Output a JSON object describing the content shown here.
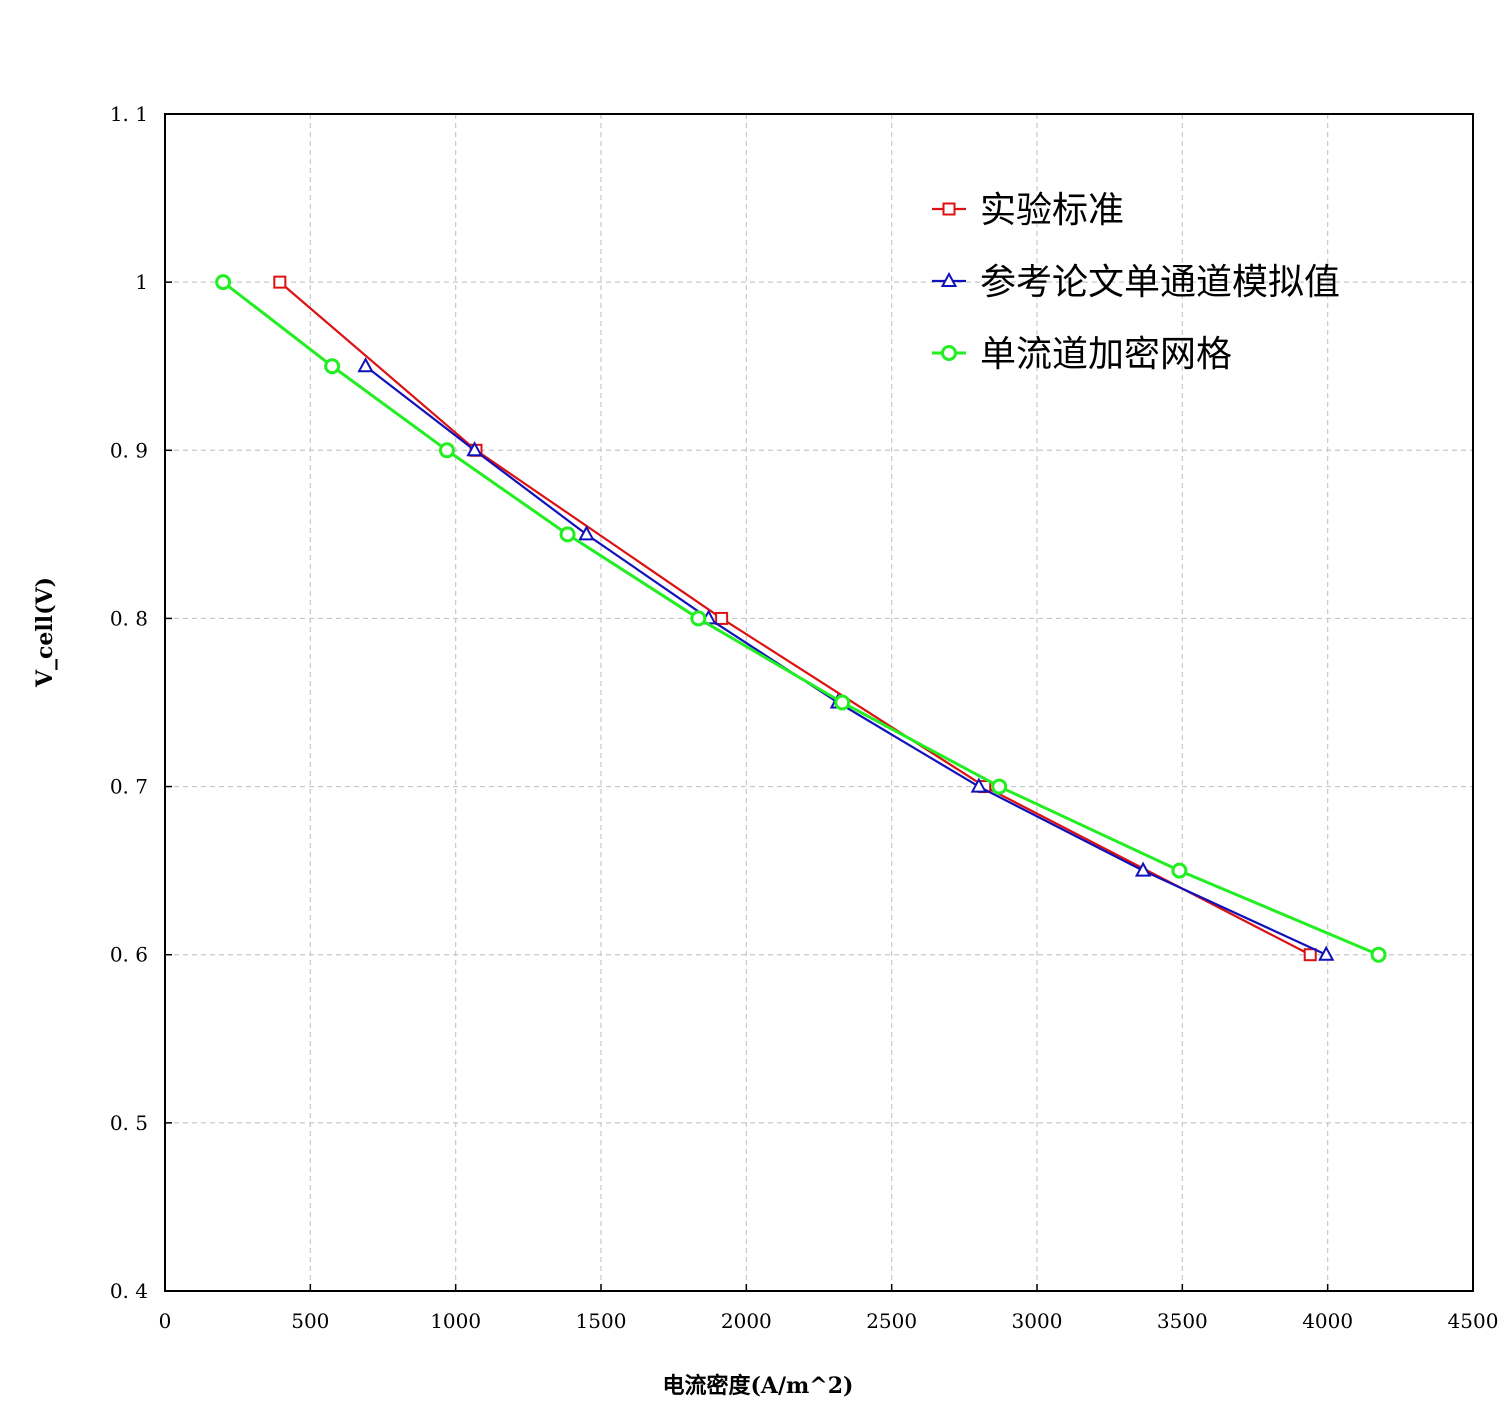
{
  "chart_data": {
    "type": "line",
    "title": "",
    "xlabel": "电流密度(A/m^2)",
    "ylabel": "V_cell(V)",
    "xlim": [
      0,
      4500
    ],
    "ylim": [
      0.4,
      1.1
    ],
    "xticks": [
      0,
      500,
      1000,
      1500,
      2000,
      2500,
      3000,
      3500,
      4000,
      4500
    ],
    "yticks": [
      0.4,
      0.5,
      0.6,
      0.7,
      0.8,
      0.9,
      1.0,
      1.1
    ],
    "xtick_labels": [
      "0",
      "500",
      "1000",
      "1500",
      "2000",
      "2500",
      "3000",
      "3500",
      "4000",
      "4500"
    ],
    "ytick_labels": [
      "0. 4",
      "0. 5",
      "0. 6",
      "0. 7",
      "0. 8",
      "0. 9",
      "1",
      "1. 1"
    ],
    "grid": true,
    "legend_position": "top-right",
    "series": [
      {
        "name": "实验标准",
        "color": "#dd1111",
        "marker": "square",
        "x": [
          395,
          1070,
          1915,
          2820,
          3940
        ],
        "y": [
          1.0,
          0.9,
          0.8,
          0.7,
          0.6
        ]
      },
      {
        "name": "参考论文单通道模拟值",
        "color": "#1111bb",
        "marker": "triangle",
        "x": [
          690,
          1065,
          1450,
          1870,
          2315,
          2800,
          3365,
          3995
        ],
        "y": [
          0.95,
          0.9,
          0.85,
          0.8,
          0.75,
          0.7,
          0.65,
          0.6
        ]
      },
      {
        "name": "单流道加密网格",
        "color": "#22ee22",
        "marker": "circle",
        "x": [
          200,
          575,
          970,
          1385,
          1835,
          2330,
          2870,
          3490,
          4175
        ],
        "y": [
          1.0,
          0.95,
          0.9,
          0.85,
          0.8,
          0.75,
          0.7,
          0.65,
          0.6
        ]
      }
    ]
  }
}
